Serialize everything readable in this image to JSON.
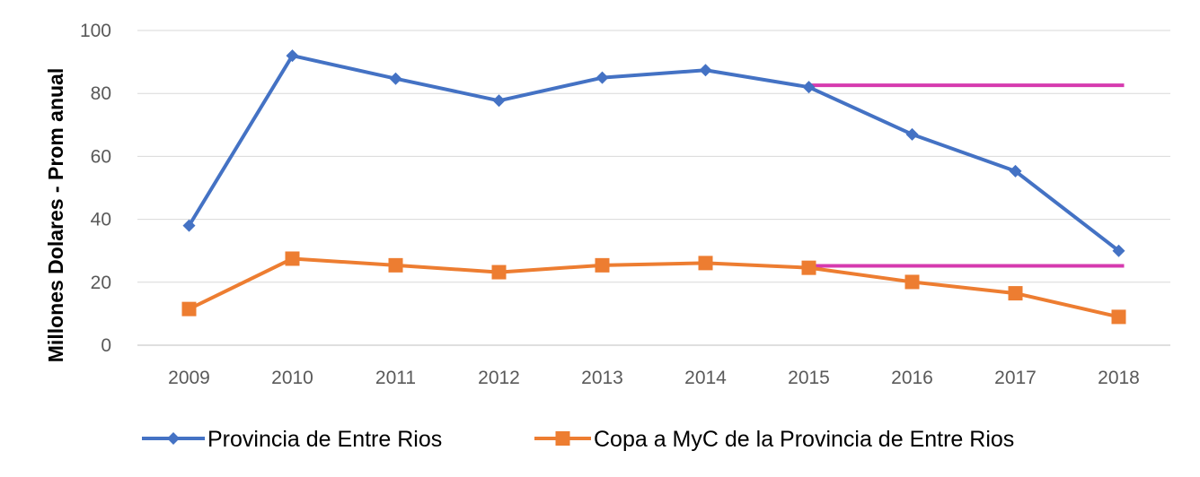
{
  "chart_data": {
    "type": "line",
    "title": "",
    "xlabel": "",
    "ylabel": "Millones Dolares - Prom anual",
    "ylim": [
      0,
      100
    ],
    "yticks": [
      0,
      20,
      40,
      60,
      80,
      100
    ],
    "grid": true,
    "legend_position": "bottom",
    "categories": [
      "2009",
      "2010",
      "2011",
      "2012",
      "2013",
      "2014",
      "2015",
      "2016",
      "2017",
      "2018"
    ],
    "series": [
      {
        "name": "Provincia de Entre Rios",
        "color": "#4472C4",
        "marker": "diamond",
        "values": [
          38,
          92,
          84.7,
          77.7,
          85,
          87.4,
          82,
          67,
          55.3,
          30
        ]
      },
      {
        "name": "Copa a MyC de la Provincia de Entre Rios",
        "color": "#ED7D31",
        "marker": "square",
        "values": [
          11.5,
          27.5,
          25.4,
          23.2,
          25.4,
          26.1,
          24.6,
          20.1,
          16.5,
          9
        ]
      }
    ],
    "reference_lines": [
      {
        "color": "#D63AAF",
        "y": 82.6,
        "from": "2015",
        "to": "2018"
      },
      {
        "color": "#D63AAF",
        "y": 25.2,
        "from": "2015",
        "to": "2018"
      }
    ]
  }
}
